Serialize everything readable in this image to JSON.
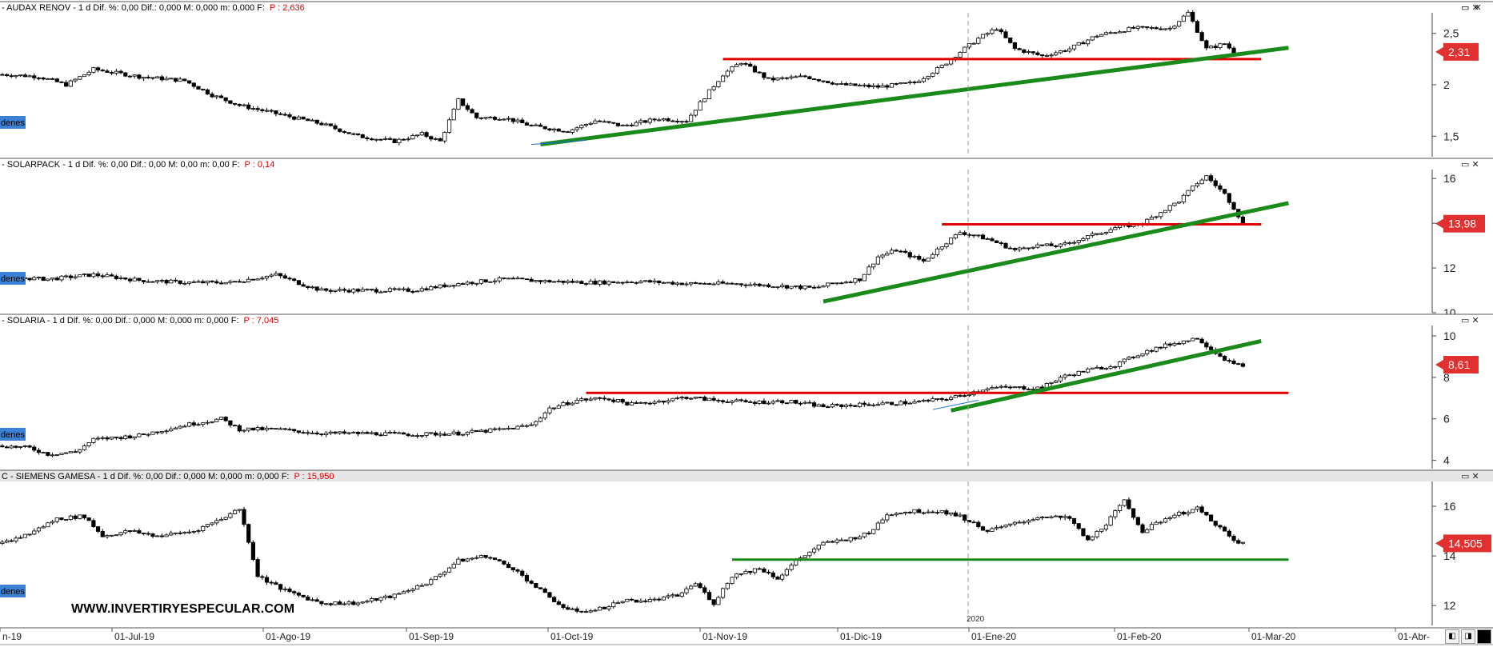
{
  "watermark": "WWW.INVERTIRYESPECULAR.COM",
  "orders_tag": "denes",
  "year_marker": "2020",
  "x_axis_labels": [
    "n-19",
    "01-Jul-19",
    "01-Ago-19",
    "01-Sep-19",
    "01-Oct-19",
    "01-Nov-19",
    "01-Dic-19",
    "01-Ene-20",
    "01-Feb-20",
    "01-Mar-20",
    "01-Abr-"
  ],
  "colors": {
    "up": "#ffffff",
    "down": "#000000",
    "support": "#e00000",
    "trend": "#1a8a1a",
    "price_tag": "#e03030",
    "accent": "#1e6fd9"
  },
  "chart_data": [
    {
      "type": "candlestick",
      "title": "- AUDAX RENOV -  1 d  Dif. %: 0,00  Dif.: 0,000  M: 0,000  m: 0,000  F:",
      "last_label": "P : 2,636",
      "price_tag": "2,31",
      "ylim": [
        1.3,
        2.7
      ],
      "y_ticks": [
        "1,5",
        "2",
        "2,5"
      ],
      "tick_values": [
        1.5,
        2.0,
        2.5
      ],
      "anchors": [
        [
          0,
          2.1
        ],
        [
          8,
          2.08
        ],
        [
          14,
          2.0
        ],
        [
          20,
          2.15
        ],
        [
          30,
          2.08
        ],
        [
          40,
          2.04
        ],
        [
          46,
          1.9
        ],
        [
          52,
          1.8
        ],
        [
          60,
          1.72
        ],
        [
          70,
          1.62
        ],
        [
          78,
          1.5
        ],
        [
          86,
          1.45
        ],
        [
          92,
          1.52
        ],
        [
          96,
          1.45
        ],
        [
          100,
          1.85
        ],
        [
          104,
          1.68
        ],
        [
          110,
          1.68
        ],
        [
          116,
          1.6
        ],
        [
          124,
          1.55
        ],
        [
          130,
          1.65
        ],
        [
          136,
          1.6
        ],
        [
          144,
          1.67
        ],
        [
          150,
          1.65
        ],
        [
          154,
          1.88
        ],
        [
          158,
          2.1
        ],
        [
          162,
          2.22
        ],
        [
          168,
          2.05
        ],
        [
          176,
          2.08
        ],
        [
          184,
          2.0
        ],
        [
          192,
          1.98
        ],
        [
          200,
          2.02
        ],
        [
          206,
          2.18
        ],
        [
          210,
          2.32
        ],
        [
          214,
          2.45
        ],
        [
          218,
          2.55
        ],
        [
          222,
          2.35
        ],
        [
          228,
          2.28
        ],
        [
          234,
          2.35
        ],
        [
          240,
          2.48
        ],
        [
          248,
          2.55
        ],
        [
          256,
          2.55
        ],
        [
          260,
          2.7
        ],
        [
          264,
          2.35
        ],
        [
          268,
          2.4
        ],
        [
          270,
          2.32
        ]
      ],
      "support_y": 2.25,
      "support_x": [
        158,
        276
      ],
      "trend": [
        [
          118,
          1.42
        ],
        [
          282,
          2.36
        ]
      ],
      "thin_trend": [
        [
          116,
          1.42
        ],
        [
          128,
          1.46
        ]
      ]
    },
    {
      "type": "candlestick",
      "title": "- SOLARPACK -  1 d  Dif. %: 0,00  Dif.: 0,00  M: 0,00  m: 0,00  F:",
      "last_label": "P : 0,14",
      "price_tag": "13,98",
      "ylim": [
        10,
        16.4
      ],
      "y_ticks": [
        "10",
        "12",
        "14",
        "16"
      ],
      "tick_values": [
        10,
        12,
        14,
        16
      ],
      "anchors": [
        [
          0,
          11.6
        ],
        [
          10,
          11.5
        ],
        [
          20,
          11.7
        ],
        [
          30,
          11.45
        ],
        [
          40,
          11.35
        ],
        [
          50,
          11.35
        ],
        [
          60,
          11.7
        ],
        [
          66,
          11.25
        ],
        [
          70,
          11.0
        ],
        [
          80,
          11.0
        ],
        [
          90,
          11.0
        ],
        [
          100,
          11.3
        ],
        [
          110,
          11.5
        ],
        [
          120,
          11.4
        ],
        [
          130,
          11.35
        ],
        [
          140,
          11.4
        ],
        [
          150,
          11.3
        ],
        [
          160,
          11.3
        ],
        [
          170,
          11.2
        ],
        [
          178,
          11.1
        ],
        [
          182,
          11.3
        ],
        [
          188,
          11.5
        ],
        [
          192,
          12.5
        ],
        [
          196,
          12.8
        ],
        [
          202,
          12.3
        ],
        [
          206,
          13.0
        ],
        [
          210,
          13.6
        ],
        [
          216,
          13.3
        ],
        [
          222,
          12.8
        ],
        [
          226,
          13.0
        ],
        [
          232,
          13.0
        ],
        [
          238,
          13.4
        ],
        [
          244,
          13.8
        ],
        [
          250,
          14.0
        ],
        [
          254,
          14.5
        ],
        [
          258,
          15.0
        ],
        [
          262,
          15.8
        ],
        [
          264,
          16.1
        ],
        [
          268,
          15.3
        ],
        [
          270,
          14.7
        ],
        [
          272,
          13.98
        ]
      ],
      "support_y": 13.95,
      "support_x": [
        206,
        276
      ],
      "trend": [
        [
          180,
          10.5
        ],
        [
          282,
          14.9
        ]
      ]
    },
    {
      "type": "candlestick",
      "title": "- SOLARIA -  1 d  Dif. %: 0,00  Dif.: 0,000  M: 0,000  m: 0,000  F:",
      "last_label": "P : 7,045",
      "price_tag": "8,61",
      "ylim": [
        3.6,
        10.5
      ],
      "y_ticks": [
        "4",
        "6",
        "8",
        "10"
      ],
      "tick_values": [
        4,
        6,
        8,
        10
      ],
      "anchors": [
        [
          0,
          4.7
        ],
        [
          6,
          4.6
        ],
        [
          10,
          4.3
        ],
        [
          16,
          4.4
        ],
        [
          20,
          5.0
        ],
        [
          30,
          5.2
        ],
        [
          40,
          5.7
        ],
        [
          48,
          6.0
        ],
        [
          52,
          5.5
        ],
        [
          60,
          5.5
        ],
        [
          70,
          5.3
        ],
        [
          80,
          5.3
        ],
        [
          90,
          5.25
        ],
        [
          100,
          5.3
        ],
        [
          110,
          5.5
        ],
        [
          116,
          5.7
        ],
        [
          120,
          6.5
        ],
        [
          126,
          6.9
        ],
        [
          132,
          7.0
        ],
        [
          138,
          6.7
        ],
        [
          144,
          6.85
        ],
        [
          150,
          7.05
        ],
        [
          156,
          6.9
        ],
        [
          164,
          6.8
        ],
        [
          172,
          6.85
        ],
        [
          180,
          6.6
        ],
        [
          190,
          6.7
        ],
        [
          200,
          6.8
        ],
        [
          206,
          6.95
        ],
        [
          210,
          7.1
        ],
        [
          216,
          7.5
        ],
        [
          222,
          7.5
        ],
        [
          228,
          7.5
        ],
        [
          232,
          8.0
        ],
        [
          238,
          8.35
        ],
        [
          244,
          8.6
        ],
        [
          250,
          9.2
        ],
        [
          256,
          9.6
        ],
        [
          262,
          9.9
        ],
        [
          266,
          9.2
        ],
        [
          270,
          8.6
        ],
        [
          272,
          8.61
        ]
      ],
      "support_y": 7.25,
      "support_x": [
        128,
        282
      ],
      "trend": [
        [
          208,
          6.4
        ],
        [
          276,
          9.75
        ]
      ],
      "thin_trend": [
        [
          204,
          6.45
        ],
        [
          214,
          6.9
        ]
      ]
    },
    {
      "type": "candlestick",
      "title": "C - SIEMENS GAMESA -  1 d  Dif. %: 0,00  Dif.: 0,000  M: 0,000  m: 0,000  F:",
      "last_label": "P : 15,950",
      "price_tag": "14,505",
      "ylim": [
        11.2,
        17.0
      ],
      "y_ticks": [
        "12",
        "14",
        "16"
      ],
      "tick_values": [
        12,
        14,
        16
      ],
      "anchors": [
        [
          0,
          14.5
        ],
        [
          6,
          14.9
        ],
        [
          12,
          15.5
        ],
        [
          18,
          15.6
        ],
        [
          22,
          14.8
        ],
        [
          28,
          15.0
        ],
        [
          34,
          14.8
        ],
        [
          42,
          15.0
        ],
        [
          48,
          15.5
        ],
        [
          52,
          15.9
        ],
        [
          54,
          14.6
        ],
        [
          56,
          13.2
        ],
        [
          62,
          12.6
        ],
        [
          70,
          12.1
        ],
        [
          78,
          12.1
        ],
        [
          86,
          12.4
        ],
        [
          94,
          13.0
        ],
        [
          100,
          13.8
        ],
        [
          106,
          14.0
        ],
        [
          112,
          13.5
        ],
        [
          118,
          12.6
        ],
        [
          124,
          11.8
        ],
        [
          130,
          11.8
        ],
        [
          136,
          12.2
        ],
        [
          142,
          12.2
        ],
        [
          148,
          12.4
        ],
        [
          152,
          12.9
        ],
        [
          156,
          12.1
        ],
        [
          160,
          13.2
        ],
        [
          166,
          13.5
        ],
        [
          170,
          13.1
        ],
        [
          174,
          13.8
        ],
        [
          180,
          14.5
        ],
        [
          186,
          14.7
        ],
        [
          190,
          14.9
        ],
        [
          194,
          15.7
        ],
        [
          200,
          15.8
        ],
        [
          206,
          15.8
        ],
        [
          210,
          15.6
        ],
        [
          216,
          15.0
        ],
        [
          222,
          15.3
        ],
        [
          228,
          15.6
        ],
        [
          234,
          15.5
        ],
        [
          238,
          14.6
        ],
        [
          242,
          15.3
        ],
        [
          246,
          16.2
        ],
        [
          250,
          15.0
        ],
        [
          256,
          15.6
        ],
        [
          262,
          15.9
        ],
        [
          266,
          15.3
        ],
        [
          270,
          14.6
        ],
        [
          272,
          14.505
        ]
      ],
      "support_y": 13.85,
      "support_x": [
        160,
        282
      ],
      "trend": null
    }
  ]
}
